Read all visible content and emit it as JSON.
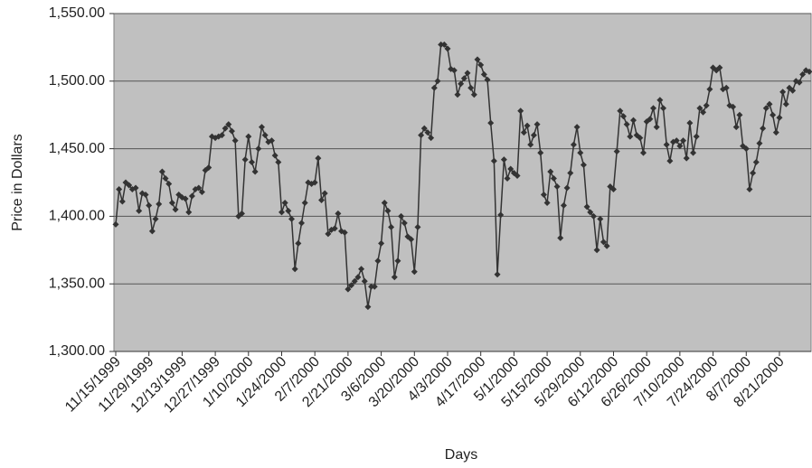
{
  "chart_data": {
    "type": "line",
    "xlabel": "Days",
    "ylabel": "Price in Dollars",
    "categories": [
      "11/15/1999",
      null,
      null,
      null,
      null,
      null,
      null,
      null,
      null,
      null,
      "11/29/1999",
      null,
      null,
      null,
      null,
      null,
      null,
      null,
      null,
      null,
      "12/13/1999",
      null,
      null,
      null,
      null,
      null,
      null,
      null,
      null,
      null,
      "12/27/1999",
      null,
      null,
      null,
      null,
      null,
      null,
      null,
      null,
      null,
      "1/10/2000",
      null,
      null,
      null,
      null,
      null,
      null,
      null,
      null,
      null,
      "1/24/2000",
      null,
      null,
      null,
      null,
      null,
      null,
      null,
      null,
      null,
      "2/7/2000",
      null,
      null,
      null,
      null,
      null,
      null,
      null,
      null,
      null,
      "2/21/2000",
      null,
      null,
      null,
      null,
      null,
      null,
      null,
      null,
      null,
      "3/6/2000",
      null,
      null,
      null,
      null,
      null,
      null,
      null,
      null,
      null,
      "3/20/2000",
      null,
      null,
      null,
      null,
      null,
      null,
      null,
      null,
      null,
      "4/3/2000",
      null,
      null,
      null,
      null,
      null,
      null,
      null,
      null,
      null,
      "4/17/2000",
      null,
      null,
      null,
      null,
      null,
      null,
      null,
      null,
      null,
      "5/1/2000",
      null,
      null,
      null,
      null,
      null,
      null,
      null,
      null,
      null,
      "5/15/2000",
      null,
      null,
      null,
      null,
      null,
      null,
      null,
      null,
      null,
      "5/29/2000",
      null,
      null,
      null,
      null,
      null,
      null,
      null,
      null,
      null,
      "6/12/2000",
      null,
      null,
      null,
      null,
      null,
      null,
      null,
      null,
      null,
      "6/26/2000",
      null,
      null,
      null,
      null,
      null,
      null,
      null,
      null,
      null,
      "7/10/2000",
      null,
      null,
      null,
      null,
      null,
      null,
      null,
      null,
      null,
      "7/24/2000",
      null,
      null,
      null,
      null,
      null,
      null,
      null,
      null,
      null,
      "8/7/2000",
      null,
      null,
      null,
      null,
      null,
      null,
      null,
      null,
      null,
      "8/21/2000",
      null,
      null,
      null,
      null,
      null,
      null,
      null,
      null,
      null
    ],
    "series": [
      {
        "name": "Price",
        "color": "#333333",
        "values": [
          1394,
          1420,
          1411,
          1425,
          1423,
          1420,
          1421,
          1404,
          1417,
          1416,
          1408,
          1389,
          1398,
          1409,
          1433,
          1428,
          1424,
          1410,
          1405,
          1416,
          1414,
          1413,
          1403,
          1415,
          1420,
          1421,
          1418,
          1434,
          1436,
          1459,
          1458,
          1459,
          1460,
          1465,
          1468,
          1463,
          1456,
          1400,
          1402,
          1442,
          1459,
          1440,
          1433,
          1450,
          1466,
          1460,
          1455,
          1456,
          1445,
          1440,
          1403,
          1410,
          1404,
          1398,
          1361,
          1380,
          1395,
          1410,
          1425,
          1424,
          1425,
          1443,
          1412,
          1417,
          1387,
          1390,
          1391,
          1402,
          1389,
          1388,
          1346,
          1349,
          1352,
          1355,
          1361,
          1352,
          1333,
          1348,
          1348,
          1367,
          1380,
          1410,
          1404,
          1392,
          1355,
          1367,
          1400,
          1395,
          1385,
          1383,
          1359,
          1392,
          1460,
          1465,
          1462,
          1458,
          1495,
          1500,
          1527,
          1527,
          1524,
          1509,
          1508,
          1490,
          1498,
          1502,
          1506,
          1495,
          1490,
          1516,
          1512,
          1505,
          1501,
          1469,
          1441,
          1357,
          1401,
          1442,
          1428,
          1435,
          1432,
          1430,
          1478,
          1462,
          1467,
          1453,
          1460,
          1468,
          1447,
          1416,
          1410,
          1433,
          1428,
          1422,
          1384,
          1408,
          1421,
          1432,
          1453,
          1466,
          1447,
          1438,
          1407,
          1403,
          1400,
          1375,
          1398,
          1381,
          1378,
          1422,
          1420,
          1448,
          1478,
          1474,
          1468,
          1459,
          1471,
          1460,
          1458,
          1447,
          1470,
          1472,
          1480,
          1466,
          1486,
          1480,
          1453,
          1441,
          1455,
          1456,
          1452,
          1456,
          1443,
          1469,
          1447,
          1459,
          1480,
          1477,
          1482,
          1494,
          1510,
          1508,
          1510,
          1494,
          1495,
          1482,
          1481,
          1466,
          1475,
          1452,
          1450,
          1420,
          1432,
          1440,
          1454,
          1465,
          1480,
          1483,
          1475,
          1462,
          1473,
          1492,
          1483,
          1495,
          1493,
          1500,
          1499,
          1505,
          1508,
          1507
        ]
      }
    ],
    "ylim": [
      1300,
      1550
    ],
    "yticks": [
      {
        "value": 1300,
        "label": "1,300.00"
      },
      {
        "value": 1350,
        "label": "1,350.00"
      },
      {
        "value": 1400,
        "label": "1,400.00"
      },
      {
        "value": 1450,
        "label": "1,450.00"
      },
      {
        "value": 1500,
        "label": "1,500.00"
      },
      {
        "value": 1550,
        "label": "1,550.00"
      }
    ],
    "grid": true
  }
}
